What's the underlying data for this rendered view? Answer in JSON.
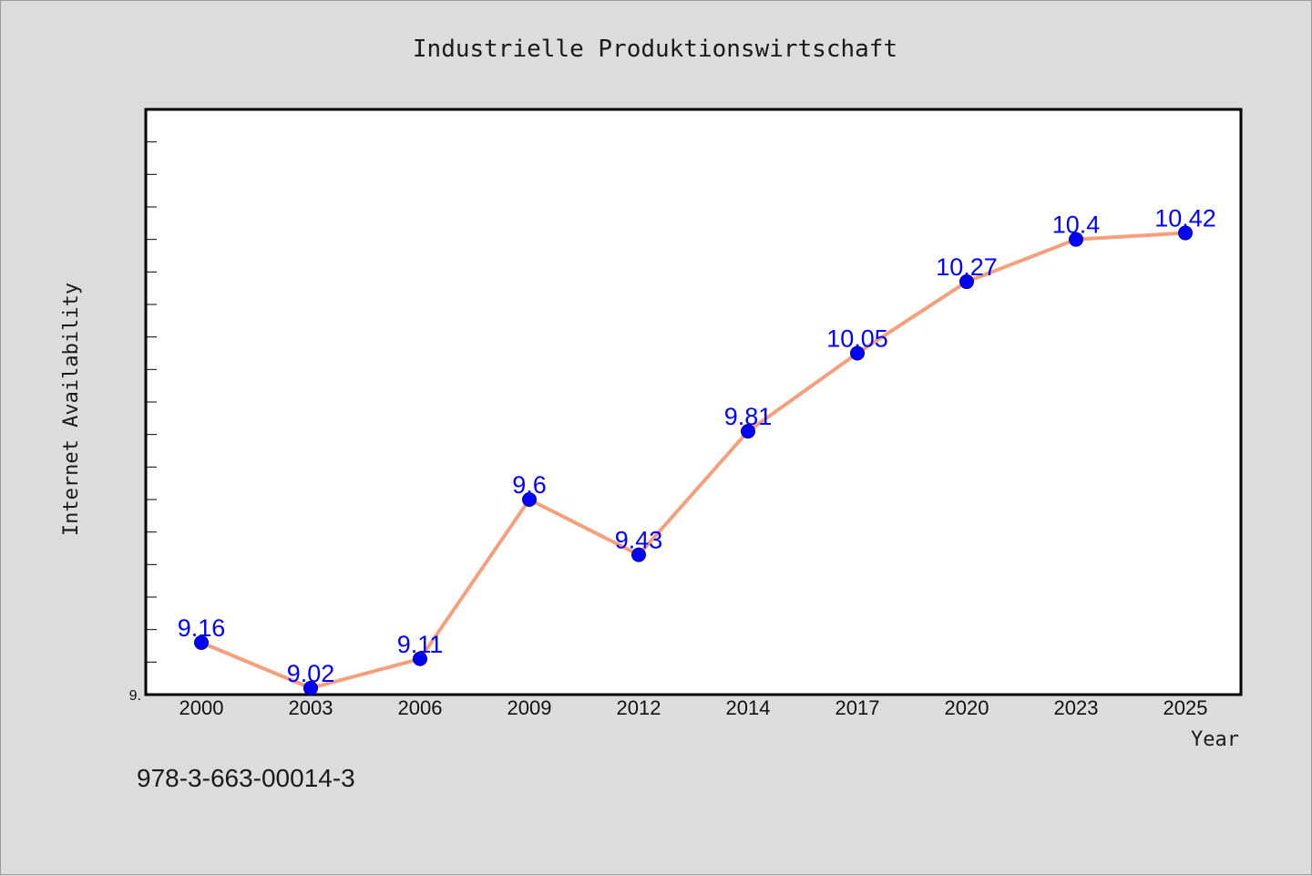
{
  "chart_data": {
    "type": "line",
    "title": "Industrielle Produktionswirtschaft",
    "xlabel": "Year",
    "ylabel": "Internet Availability",
    "categories": [
      "2000",
      "2003",
      "2006",
      "2009",
      "2012",
      "2014",
      "2017",
      "2020",
      "2023",
      "2025"
    ],
    "series": [
      {
        "values": [
          9.16,
          9.02,
          9.11,
          9.6,
          9.43,
          9.81,
          10.05,
          10.27,
          10.4,
          10.42
        ]
      }
    ],
    "data_labels": [
      "9.16",
      "9.02",
      "9.11",
      "9.6",
      "9.43",
      "9.81",
      "10.05",
      "10.27",
      "10.4",
      "10.42"
    ],
    "ylim": [
      9.0,
      10.8
    ],
    "y_tick_labels": [
      "9."
    ],
    "grid": false,
    "legend": "none",
    "colors": {
      "line": "#f4a07c",
      "marker": "#0000ff",
      "data_label": "#0000ff",
      "background": "#dcdcdc",
      "plot_background": "#ffffff"
    }
  },
  "footer_text": "978-3-663-00014-3"
}
